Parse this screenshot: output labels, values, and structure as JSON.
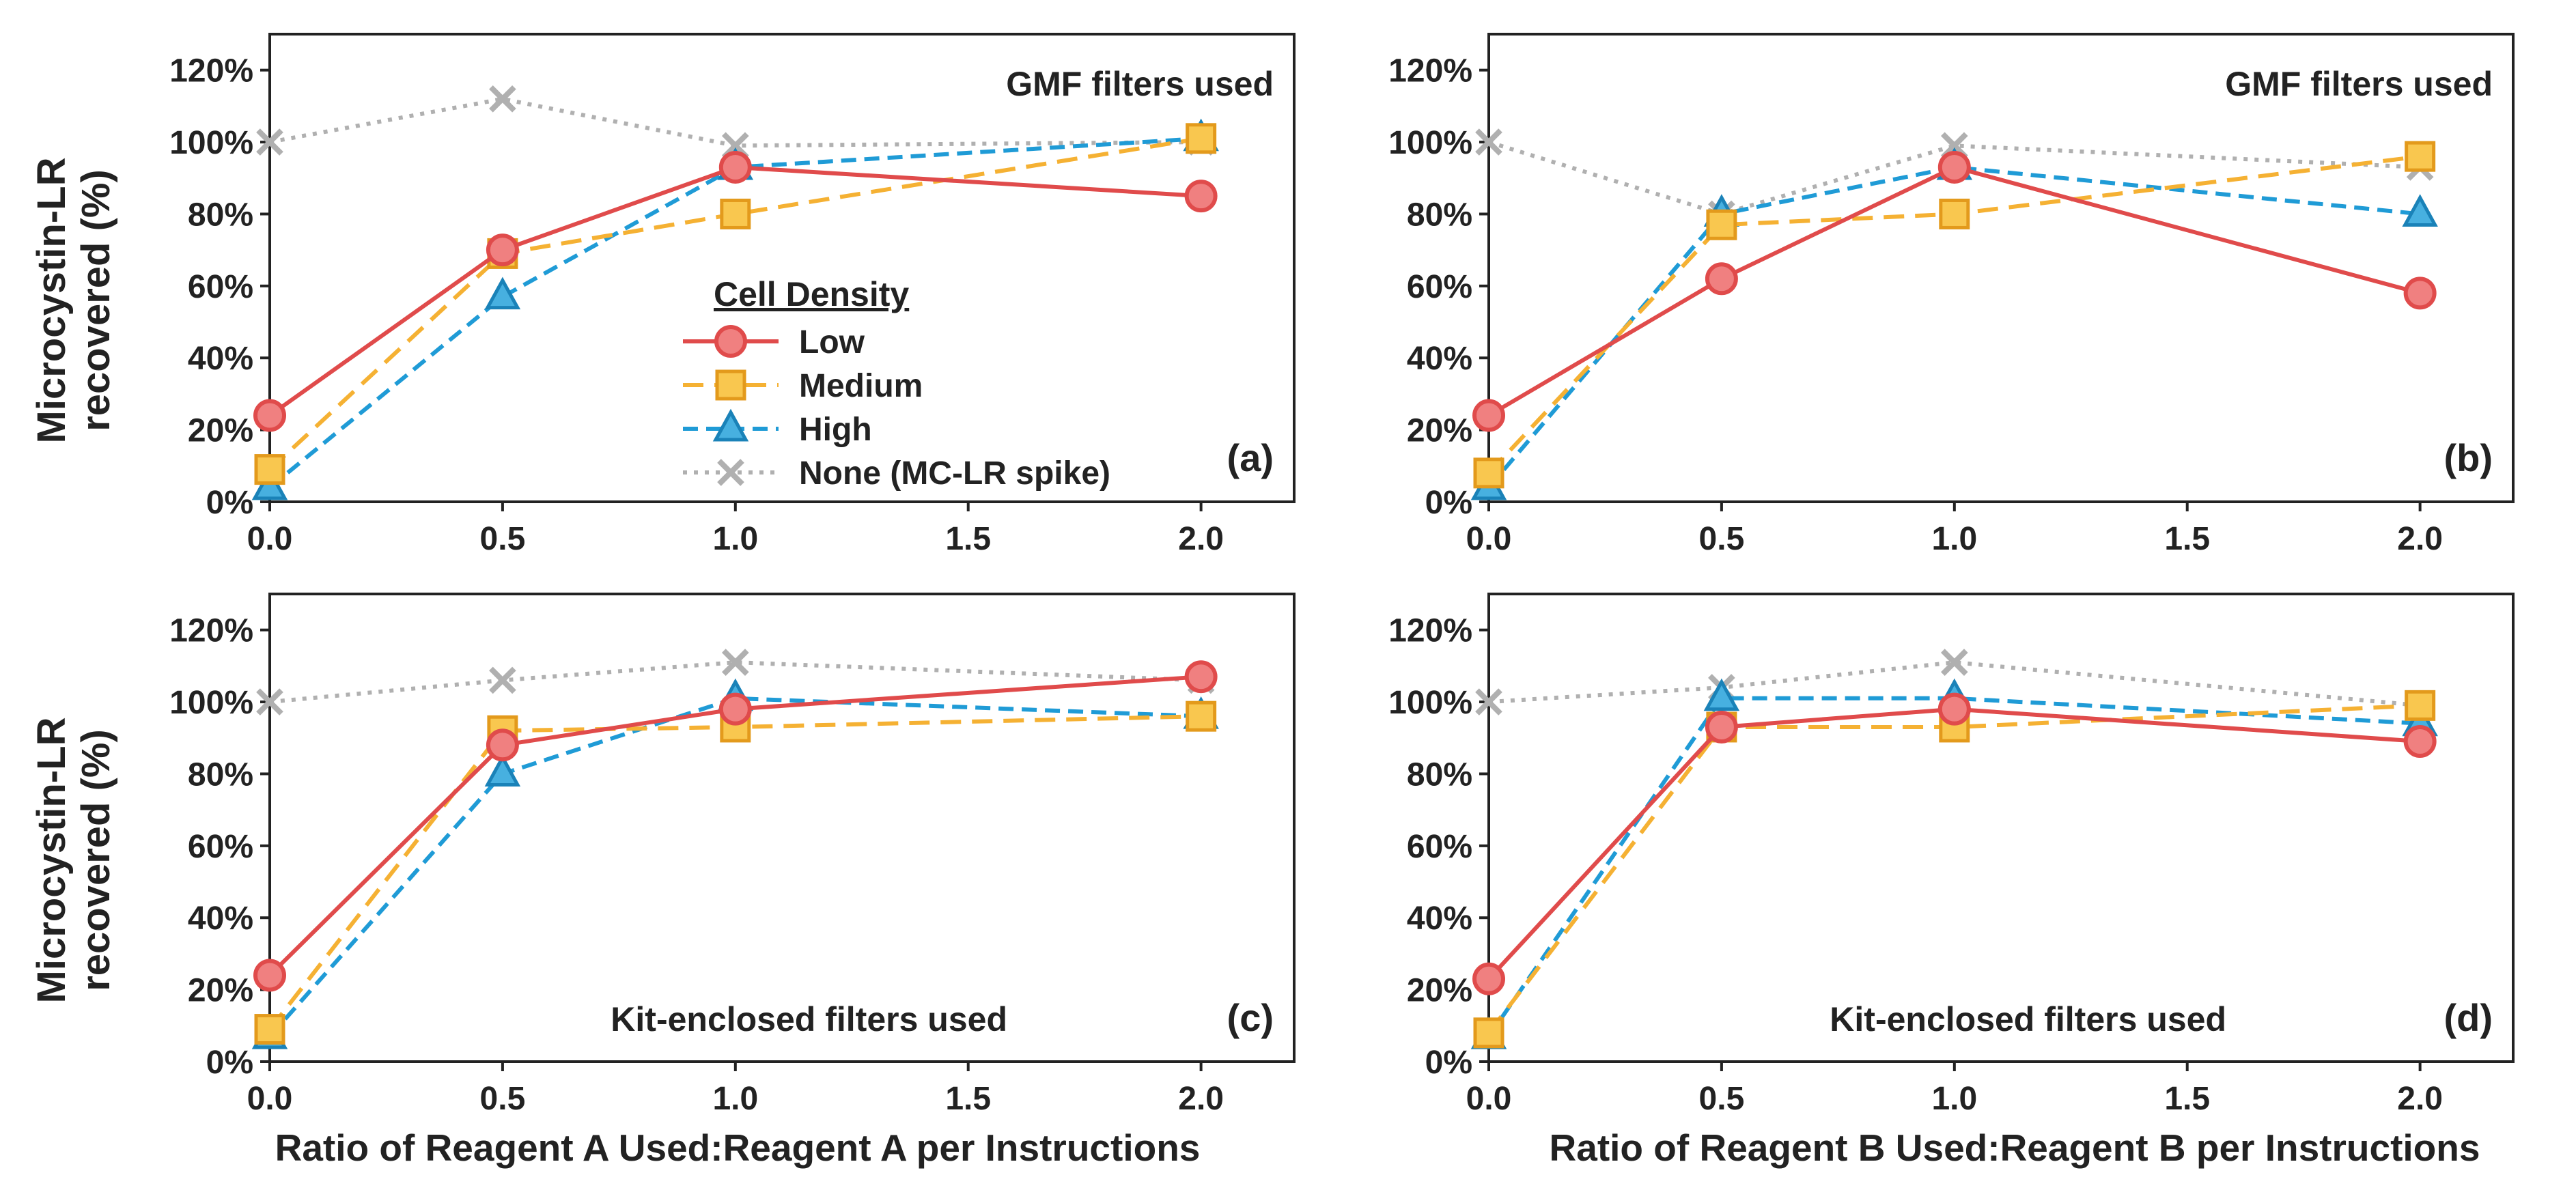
{
  "figure": {
    "ylabel_line1": "Microcystin-LR",
    "ylabel_line2": "recovered (%)",
    "xlabel_a": "Ratio of Reagent A Used:Reagent A per Instructions",
    "xlabel_b": "Ratio of Reagent B Used:Reagent B per Instructions"
  },
  "legend": {
    "title": "Cell Density",
    "entries": [
      "Low",
      "Medium",
      "High",
      "None (MC-LR spike)"
    ]
  },
  "colors": {
    "low": "#e04b4b",
    "low_fill": "#f08080",
    "medium": "#f5b133",
    "medium_fill": "#f9c74f",
    "high": "#1f9bd6",
    "high_fill": "#47b0e0",
    "none": "#b0b0b0"
  },
  "chart_data": [
    {
      "type": "line",
      "panel_label": "(a)",
      "annotation": "GMF filters used",
      "x": [
        0.0,
        0.5,
        1.0,
        2.0
      ],
      "x_ticks": [
        "0.0",
        "0.5",
        "1.0",
        "1.5",
        "2.0"
      ],
      "xlim": [
        0,
        2.2
      ],
      "ylim": [
        0,
        130
      ],
      "y_ticks": [
        "0%",
        "20%",
        "40%",
        "60%",
        "80%",
        "100%",
        "120%"
      ],
      "series": [
        {
          "name": "Low",
          "values": [
            24,
            70,
            93,
            85
          ]
        },
        {
          "name": "Medium",
          "values": [
            9,
            69,
            80,
            101
          ]
        },
        {
          "name": "High",
          "values": [
            4,
            57,
            93,
            101
          ]
        },
        {
          "name": "None (MC-LR spike)",
          "values": [
            100,
            112,
            99,
            100
          ]
        }
      ]
    },
    {
      "type": "line",
      "panel_label": "(b)",
      "annotation": "GMF filters used",
      "x": [
        0.0,
        0.5,
        1.0,
        2.0
      ],
      "x_ticks": [
        "0.0",
        "0.5",
        "1.0",
        "1.5",
        "2.0"
      ],
      "xlim": [
        0,
        2.2
      ],
      "ylim": [
        0,
        130
      ],
      "y_ticks": [
        "0%",
        "20%",
        "40%",
        "60%",
        "80%",
        "100%",
        "120%"
      ],
      "series": [
        {
          "name": "Low",
          "values": [
            24,
            62,
            93,
            58
          ]
        },
        {
          "name": "Medium",
          "values": [
            8,
            77,
            80,
            96
          ]
        },
        {
          "name": "High",
          "values": [
            4,
            80,
            93,
            80
          ]
        },
        {
          "name": "None (MC-LR spike)",
          "values": [
            100,
            80,
            99,
            93
          ]
        }
      ]
    },
    {
      "type": "line",
      "panel_label": "(c)",
      "annotation": "Kit-enclosed filters used",
      "x": [
        0.0,
        0.5,
        1.0,
        2.0
      ],
      "x_ticks": [
        "0.0",
        "0.5",
        "1.0",
        "1.5",
        "2.0"
      ],
      "xlim": [
        0,
        2.2
      ],
      "ylim": [
        0,
        130
      ],
      "y_ticks": [
        "0%",
        "20%",
        "40%",
        "60%",
        "80%",
        "100%",
        "120%"
      ],
      "series": [
        {
          "name": "Low",
          "values": [
            24,
            88,
            98,
            107
          ]
        },
        {
          "name": "Medium",
          "values": [
            9,
            92,
            93,
            96
          ]
        },
        {
          "name": "High",
          "values": [
            7,
            80,
            101,
            96
          ]
        },
        {
          "name": "None (MC-LR spike)",
          "values": [
            100,
            106,
            111,
            106
          ]
        }
      ]
    },
    {
      "type": "line",
      "panel_label": "(d)",
      "annotation": "Kit-enclosed filters used",
      "x": [
        0.0,
        0.5,
        1.0,
        2.0
      ],
      "x_ticks": [
        "0.0",
        "0.5",
        "1.0",
        "1.5",
        "2.0"
      ],
      "xlim": [
        0,
        2.2
      ],
      "ylim": [
        0,
        130
      ],
      "y_ticks": [
        "0%",
        "20%",
        "40%",
        "60%",
        "80%",
        "100%",
        "120%"
      ],
      "series": [
        {
          "name": "Low",
          "values": [
            23,
            93,
            98,
            89
          ]
        },
        {
          "name": "Medium",
          "values": [
            8,
            93,
            93,
            99
          ]
        },
        {
          "name": "High",
          "values": [
            7,
            101,
            101,
            94
          ]
        },
        {
          "name": "None (MC-LR spike)",
          "values": [
            100,
            104,
            111,
            99
          ]
        }
      ]
    }
  ]
}
